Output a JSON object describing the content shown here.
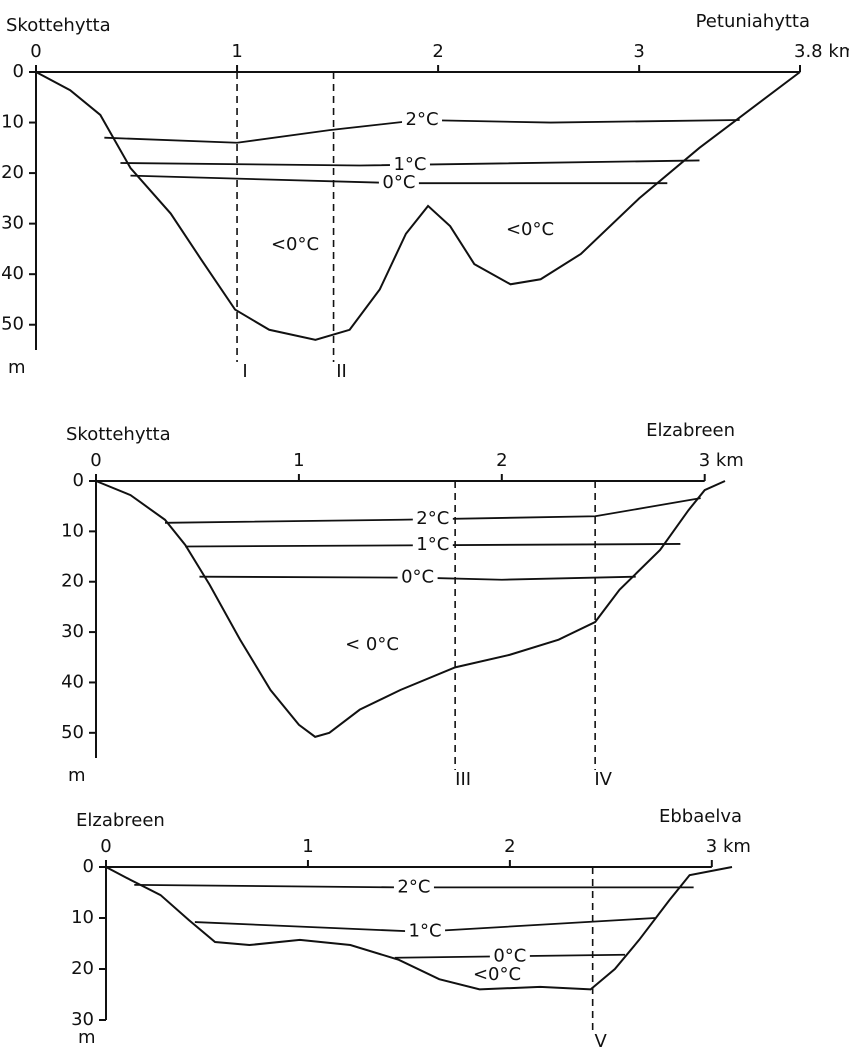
{
  "chart_data": [
    {
      "type": "line",
      "left_label": "Skottehytta",
      "right_label": "Petuniahytta",
      "y_label": "m",
      "xlim": [
        0,
        3.8
      ],
      "xticks": [
        0,
        1,
        2,
        3,
        {
          "value": 3.8,
          "label": "3.8 km"
        }
      ],
      "ylim": [
        55,
        0
      ],
      "yticks": [
        0,
        10,
        20,
        30,
        40,
        50
      ],
      "series": [
        {
          "x": [
            0,
            0.17,
            0.32,
            0.47,
            0.67,
            0.82,
            0.99,
            1.16,
            1.39,
            1.56,
            1.71,
            1.84,
            1.95,
            2.06,
            2.18,
            2.36,
            2.51,
            2.71,
            3.0,
            3.3,
            3.8
          ],
          "values": [
            0,
            3.6,
            8.5,
            19,
            28,
            37,
            47,
            51,
            53,
            51,
            43,
            32,
            26.5,
            30.5,
            38,
            42,
            41,
            36,
            25,
            15,
            0
          ]
        },
        {
          "name": "2°C",
          "x": [
            0.34,
            1.0,
            1.46,
            1.91,
            2.56,
            3.5
          ],
          "values": [
            13,
            14,
            11.5,
            9.5,
            10,
            9.5
          ]
        },
        {
          "name": "1°C",
          "x": [
            0.42,
            1.61,
            3.3
          ],
          "values": [
            18,
            18.5,
            17.5
          ]
        },
        {
          "name": "0°C",
          "x": [
            0.47,
            1.81,
            3.14
          ],
          "values": [
            20.5,
            22,
            22
          ]
        }
      ],
      "markers": [
        {
          "label": "I",
          "x": 1.0
        },
        {
          "label": "II",
          "x": 1.48
        }
      ],
      "annotations": [
        "<0°C",
        "<0°C"
      ]
    },
    {
      "type": "line",
      "left_label": "Skottehytta",
      "right_label": "Elzabreen",
      "y_label": "m",
      "xlim": [
        0,
        3.1
      ],
      "xticks": [
        0,
        1,
        2,
        {
          "value": 3,
          "label": "3 km"
        }
      ],
      "ylim": [
        55,
        0
      ],
      "yticks": [
        0,
        10,
        20,
        30,
        40,
        50
      ],
      "series": [
        {
          "x": [
            0,
            0.17,
            0.34,
            0.44,
            0.56,
            0.71,
            0.86,
            1.0,
            1.08,
            1.15,
            1.3,
            1.5,
            1.77,
            2.04,
            2.28,
            2.46,
            2.58,
            2.78,
            2.92,
            3.0,
            3.1
          ],
          "values": [
            0,
            2.8,
            7.7,
            12.7,
            20.6,
            31.5,
            41.5,
            48.4,
            50.8,
            50,
            45.4,
            41.5,
            37,
            34.5,
            31.5,
            28,
            21.6,
            13.7,
            5.8,
            1.8,
            0
          ]
        },
        {
          "name": "2°C",
          "x": [
            0.34,
            1.5,
            2.46,
            2.98
          ],
          "values": [
            8.3,
            7.7,
            7,
            3.4
          ]
        },
        {
          "name": "1°C",
          "x": [
            0.44,
            2.88
          ],
          "values": [
            13,
            12.5
          ]
        },
        {
          "name": "0°C",
          "x": [
            0.51,
            1.6,
            2.0,
            2.66
          ],
          "values": [
            19,
            19.2,
            19.6,
            19
          ]
        }
      ],
      "markers": [
        {
          "label": "III",
          "x": 1.77
        },
        {
          "label": "IV",
          "x": 2.46
        }
      ],
      "annotations": [
        "< 0°C"
      ]
    },
    {
      "type": "line",
      "left_label": "Elzabreen",
      "right_label": "Ebbaelva",
      "y_label": "m",
      "xlim": [
        0,
        3.1
      ],
      "xticks": [
        0,
        1,
        2,
        {
          "value": 3,
          "label": "3 km"
        }
      ],
      "ylim": [
        30,
        0
      ],
      "yticks": [
        0,
        10,
        20,
        30
      ],
      "series": [
        {
          "x": [
            0,
            0.12,
            0.27,
            0.41,
            0.54,
            0.71,
            0.96,
            1.21,
            1.45,
            1.65,
            1.85,
            2.15,
            2.4,
            2.52,
            2.64,
            2.79,
            2.89,
            3.1
          ],
          "values": [
            0,
            2.5,
            5.5,
            10.4,
            14.7,
            15.3,
            14.3,
            15.3,
            18.2,
            22,
            24,
            23.5,
            24,
            20,
            14.3,
            6.5,
            1.6,
            0
          ]
        },
        {
          "name": "2°C",
          "x": [
            0.14,
            1.46,
            2.91
          ],
          "values": [
            3.5,
            4,
            4
          ]
        },
        {
          "name": "1°C",
          "x": [
            0.44,
            1.56,
            2.72
          ],
          "values": [
            10.8,
            12.7,
            10
          ]
        },
        {
          "name": "0°C",
          "x": [
            1.43,
            2.57
          ],
          "values": [
            17.8,
            17.2
          ]
        }
      ],
      "markers": [
        {
          "label": "V",
          "x": 2.41
        }
      ],
      "annotations": [
        "<0°C"
      ]
    }
  ]
}
